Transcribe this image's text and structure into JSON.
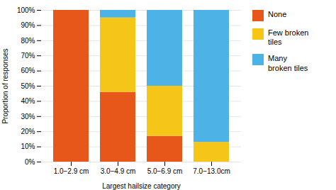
{
  "chart_data": {
    "type": "bar",
    "stacked": true,
    "categories": [
      "1.0−2.9 cm",
      "3.0−4.9 cm",
      "5.0−6.9 cm",
      "7.0−13.0cm"
    ],
    "series": [
      {
        "name": "None",
        "color": "#e8571a",
        "values": [
          1.0,
          0.46,
          0.17,
          0.0
        ]
      },
      {
        "name": "Few broken\ntiles",
        "color": "#f5c518",
        "values": [
          0.0,
          0.49,
          0.33,
          0.13
        ]
      },
      {
        "name": "Many\nbroken tiles",
        "color": "#4db3e6",
        "values": [
          0.0,
          0.05,
          0.5,
          0.87
        ]
      }
    ],
    "xlabel": "Largest hailsize category",
    "ylabel": "Proportion of responses",
    "ylim": [
      0.0,
      1.0
    ],
    "yticks": [
      {
        "value": 0.0,
        "label": "0%"
      },
      {
        "value": 0.1,
        "label": "10%"
      },
      {
        "value": 0.2,
        "label": "20%"
      },
      {
        "value": 0.3,
        "label": "30%"
      },
      {
        "value": 0.4,
        "label": "40%"
      },
      {
        "value": 0.5,
        "label": "50%"
      },
      {
        "value": 0.6,
        "label": "60%"
      },
      {
        "value": 0.7,
        "label": "70%"
      },
      {
        "value": 0.8,
        "label": "80%"
      },
      {
        "value": 0.9,
        "label": "90%"
      },
      {
        "value": 1.0,
        "label": "100%"
      }
    ],
    "grid": true,
    "legend": "right"
  }
}
